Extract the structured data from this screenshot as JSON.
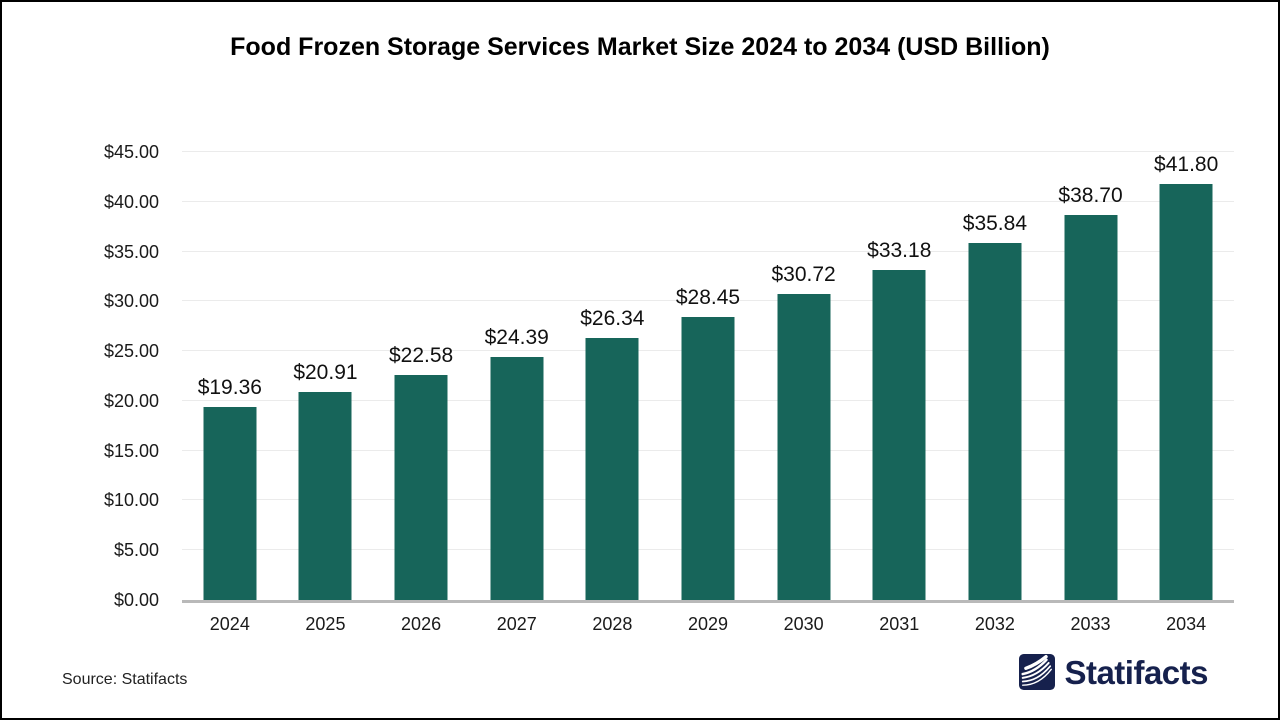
{
  "title": "Food Frozen Storage Services Market Size 2024 to 2034 (USD Billion)",
  "footer": {
    "source_label": "Source: Statifacts",
    "brand_name": "Statifacts"
  },
  "colors": {
    "bar": "#17655A",
    "gridline": "#ebebeb",
    "axis_line": "#b9b9b9",
    "tick_text": "#1a1a1a",
    "value_label_text": "#111111",
    "brand_navy": "#16214D",
    "background": "#ffffff",
    "frame_border": "#000000"
  },
  "chart_data": {
    "type": "bar",
    "title": "Food Frozen Storage Services Market Size 2024 to 2034 (USD Billion)",
    "categories": [
      "2024",
      "2025",
      "2026",
      "2027",
      "2028",
      "2029",
      "2030",
      "2031",
      "2032",
      "2033",
      "2034"
    ],
    "values": [
      19.36,
      20.91,
      22.58,
      24.39,
      26.34,
      28.45,
      30.72,
      33.18,
      35.84,
      38.7,
      41.8
    ],
    "value_labels": [
      "$19.36",
      "$20.91",
      "$22.58",
      "$24.39",
      "$26.34",
      "$28.45",
      "$30.72",
      "$33.18",
      "$35.84",
      "$38.70",
      "$41.80"
    ],
    "xlabel": "",
    "ylabel": "",
    "ylim": [
      0,
      45
    ],
    "ytick_step": 5,
    "ytick_labels": [
      "$0.00",
      "$5.00",
      "$10.00",
      "$15.00",
      "$20.00",
      "$25.00",
      "$30.00",
      "$35.00",
      "$40.00",
      "$45.00"
    ],
    "grid": "horizontal",
    "legend": "none",
    "currency": "USD",
    "unit": "Billion"
  }
}
